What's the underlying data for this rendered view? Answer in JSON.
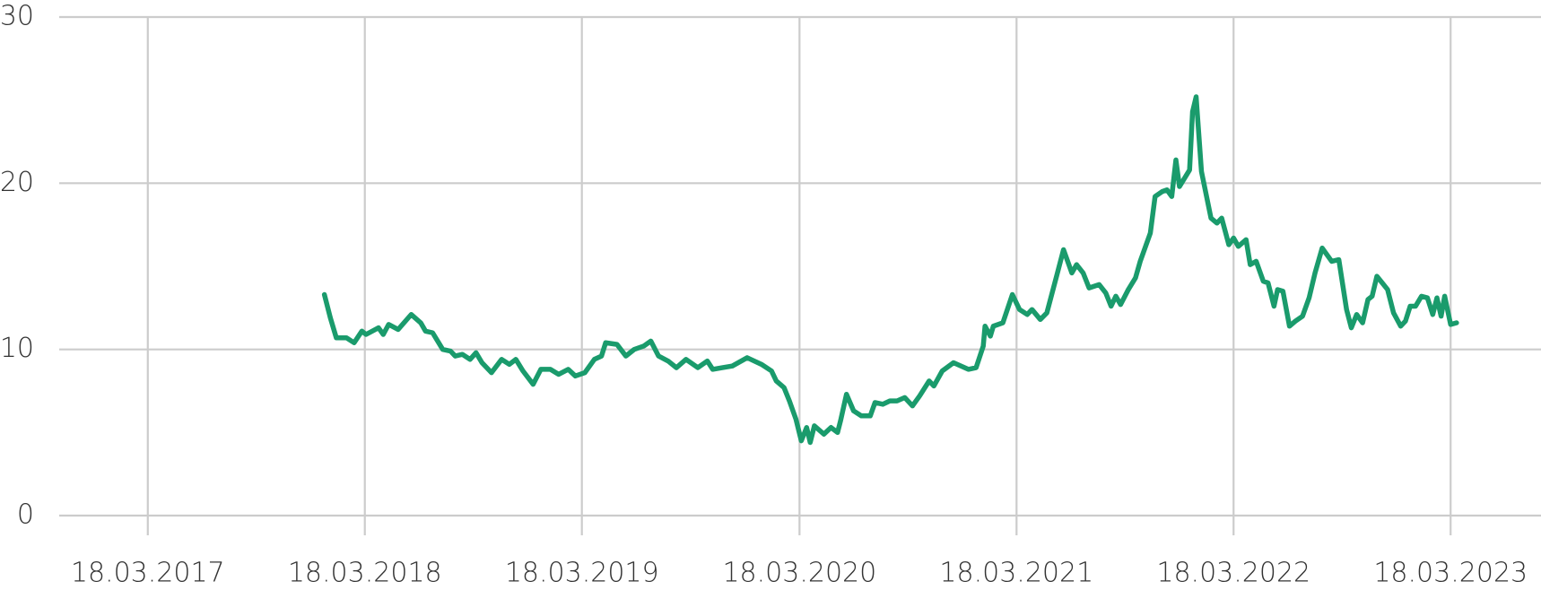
{
  "chart_data": {
    "type": "line",
    "x": [
      "2018-01-09",
      "2018-01-19",
      "2018-01-29",
      "2018-02-15",
      "2018-02-28",
      "2018-03-13",
      "2018-03-20",
      "2018-04-10",
      "2018-04-18",
      "2018-04-27",
      "2018-05-13",
      "2018-06-04",
      "2018-06-20",
      "2018-06-28",
      "2018-07-10",
      "2018-07-27",
      "2018-08-09",
      "2018-08-17",
      "2018-08-29",
      "2018-09-11",
      "2018-09-21",
      "2018-10-01",
      "2018-10-17",
      "2018-11-03",
      "2018-11-16",
      "2018-11-27",
      "2018-12-09",
      "2018-12-26",
      "2019-01-08",
      "2019-01-24",
      "2019-02-07",
      "2019-02-23",
      "2019-03-07",
      "2019-03-23",
      "2019-04-08",
      "2019-04-20",
      "2019-04-27",
      "2019-05-16",
      "2019-05-31",
      "2019-06-14",
      "2019-06-30",
      "2019-07-12",
      "2019-07-25",
      "2019-08-10",
      "2019-08-24",
      "2019-09-09",
      "2019-09-29",
      "2019-10-15",
      "2019-10-24",
      "2019-11-09",
      "2019-11-26",
      "2019-12-21",
      "2020-01-14",
      "2020-01-31",
      "2020-02-08",
      "2020-02-21",
      "2020-03-01",
      "2020-03-12",
      "2020-03-21",
      "2020-03-30",
      "2020-04-05",
      "2020-04-12",
      "2020-04-28",
      "2020-05-10",
      "2020-05-21",
      "2020-05-26",
      "2020-06-05",
      "2020-06-17",
      "2020-06-30",
      "2020-07-15",
      "2020-07-23",
      "2020-08-05",
      "2020-08-17",
      "2020-08-29",
      "2020-09-11",
      "2020-09-24",
      "2020-10-06",
      "2020-10-22",
      "2020-10-30",
      "2020-11-13",
      "2020-12-02",
      "2020-12-27",
      "2021-01-09",
      "2021-01-21",
      "2021-01-24",
      "2021-02-02",
      "2021-02-07",
      "2021-02-23",
      "2021-03-11",
      "2021-03-23",
      "2021-04-05",
      "2021-04-13",
      "2021-04-27",
      "2021-05-08",
      "2021-05-25",
      "2021-06-05",
      "2021-06-19",
      "2021-06-27",
      "2021-07-08",
      "2021-07-18",
      "2021-08-04",
      "2021-08-15",
      "2021-08-24",
      "2021-09-01",
      "2021-09-09",
      "2021-09-22",
      "2021-10-04",
      "2021-10-12",
      "2021-10-29",
      "2021-11-06",
      "2021-11-18",
      "2021-11-26",
      "2021-12-04",
      "2021-12-11",
      "2021-12-17",
      "2022-01-03",
      "2022-01-08",
      "2022-01-14",
      "2022-01-23",
      "2022-02-08",
      "2022-02-18",
      "2022-02-26",
      "2022-03-10",
      "2022-03-18",
      "2022-03-26",
      "2022-04-08",
      "2022-04-15",
      "2022-04-25",
      "2022-05-07",
      "2022-05-15",
      "2022-05-25",
      "2022-05-31",
      "2022-06-09",
      "2022-06-20",
      "2022-06-30",
      "2022-07-12",
      "2022-07-23",
      "2022-08-02",
      "2022-08-14",
      "2022-08-30",
      "2022-09-11",
      "2022-09-24",
      "2022-10-02",
      "2022-10-11",
      "2022-10-21",
      "2022-10-30",
      "2022-11-06",
      "2022-11-14",
      "2022-11-23",
      "2022-12-02",
      "2022-12-12",
      "2022-12-24",
      "2023-01-01",
      "2023-01-09",
      "2023-01-18",
      "2023-01-28",
      "2023-02-07",
      "2023-02-16",
      "2023-02-23",
      "2023-03-02",
      "2023-03-08",
      "2023-03-18",
      "2023-03-28"
    ],
    "series": [
      {
        "color": "#1a9b6c",
        "values": [
          13.3,
          11.9,
          10.7,
          10.7,
          10.4,
          11.1,
          10.9,
          11.3,
          10.9,
          11.5,
          11.2,
          12.1,
          11.6,
          11.1,
          11.0,
          10.0,
          9.9,
          9.6,
          9.7,
          9.4,
          9.8,
          9.2,
          8.6,
          9.4,
          9.1,
          9.4,
          8.7,
          7.9,
          8.8,
          8.8,
          8.5,
          8.8,
          8.4,
          8.6,
          9.4,
          9.6,
          10.4,
          10.3,
          9.6,
          10.0,
          10.2,
          10.5,
          9.6,
          9.3,
          8.9,
          9.4,
          8.9,
          9.3,
          8.8,
          8.9,
          9.0,
          9.5,
          9.1,
          8.7,
          8.1,
          7.7,
          6.9,
          5.8,
          4.5,
          5.3,
          4.4,
          5.4,
          4.9,
          5.3,
          5.0,
          5.7,
          7.3,
          6.3,
          6.0,
          6.0,
          6.8,
          6.7,
          6.9,
          6.9,
          7.1,
          6.6,
          7.2,
          8.1,
          7.8,
          8.7,
          9.2,
          8.8,
          8.9,
          10.2,
          11.4,
          10.8,
          11.4,
          11.6,
          13.3,
          12.4,
          12.1,
          12.4,
          11.8,
          12.2,
          14.5,
          16.0,
          14.6,
          15.1,
          14.6,
          13.7,
          13.9,
          13.4,
          12.6,
          13.2,
          12.7,
          13.6,
          14.3,
          15.3,
          17.0,
          19.2,
          19.5,
          19.6,
          19.2,
          21.4,
          19.8,
          20.8,
          24.3,
          25.2,
          20.7,
          17.9,
          17.6,
          17.9,
          16.3,
          16.7,
          16.2,
          16.6,
          15.1,
          15.3,
          14.1,
          14.0,
          12.6,
          13.6,
          13.5,
          11.4,
          11.7,
          12.0,
          13.1,
          14.6,
          16.1,
          15.3,
          15.4,
          12.4,
          11.3,
          12.1,
          11.6,
          13.0,
          13.2,
          14.4,
          14.0,
          13.6,
          12.2,
          11.4,
          11.7,
          12.6,
          12.6,
          13.2,
          13.1,
          12.1,
          13.1,
          12.0,
          13.2,
          11.5,
          11.6
        ]
      }
    ],
    "xlim": [
      "2016-10-20",
      "2023-08-17"
    ],
    "xticks": [
      {
        "value": "2017-03-18",
        "label": "18.03.2017"
      },
      {
        "value": "2018-03-18",
        "label": "18.03.2018"
      },
      {
        "value": "2019-03-18",
        "label": "18.03.2019"
      },
      {
        "value": "2020-03-18",
        "label": "18.03.2020"
      },
      {
        "value": "2021-03-18",
        "label": "18.03.2021"
      },
      {
        "value": "2022-03-18",
        "label": "18.03.2022"
      },
      {
        "value": "2023-03-18",
        "label": "18.03.2023"
      }
    ],
    "ylim": [
      0,
      30
    ],
    "yticks": [
      0,
      10,
      20,
      30
    ],
    "grid": true
  }
}
